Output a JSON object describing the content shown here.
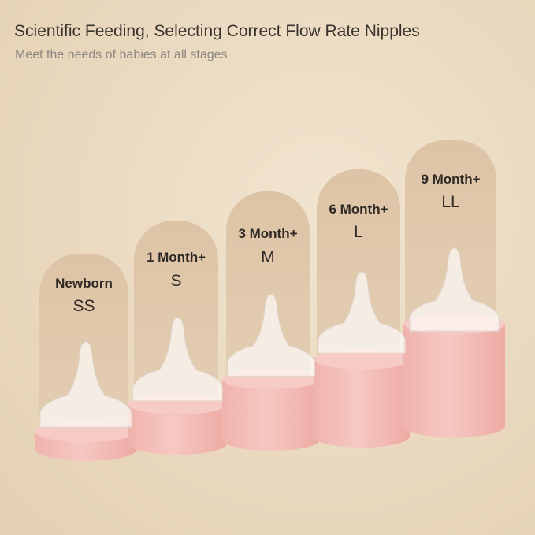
{
  "title": "Scientific Feeding, Selecting Correct Flow Rate Nipples",
  "subtitle": "Meet the needs of babies at all stages",
  "stages": [
    {
      "age": "Newborn",
      "size": "SS"
    },
    {
      "age": "1 Month+",
      "size": "S"
    },
    {
      "age": "3 Month+",
      "size": "M"
    },
    {
      "age": "6 Month+",
      "size": "L"
    },
    {
      "age": "9 Month+",
      "size": "LL"
    }
  ],
  "colors": {
    "background": "#ead9bf",
    "column": "#dec4a6",
    "base": "#f3bdb7"
  }
}
